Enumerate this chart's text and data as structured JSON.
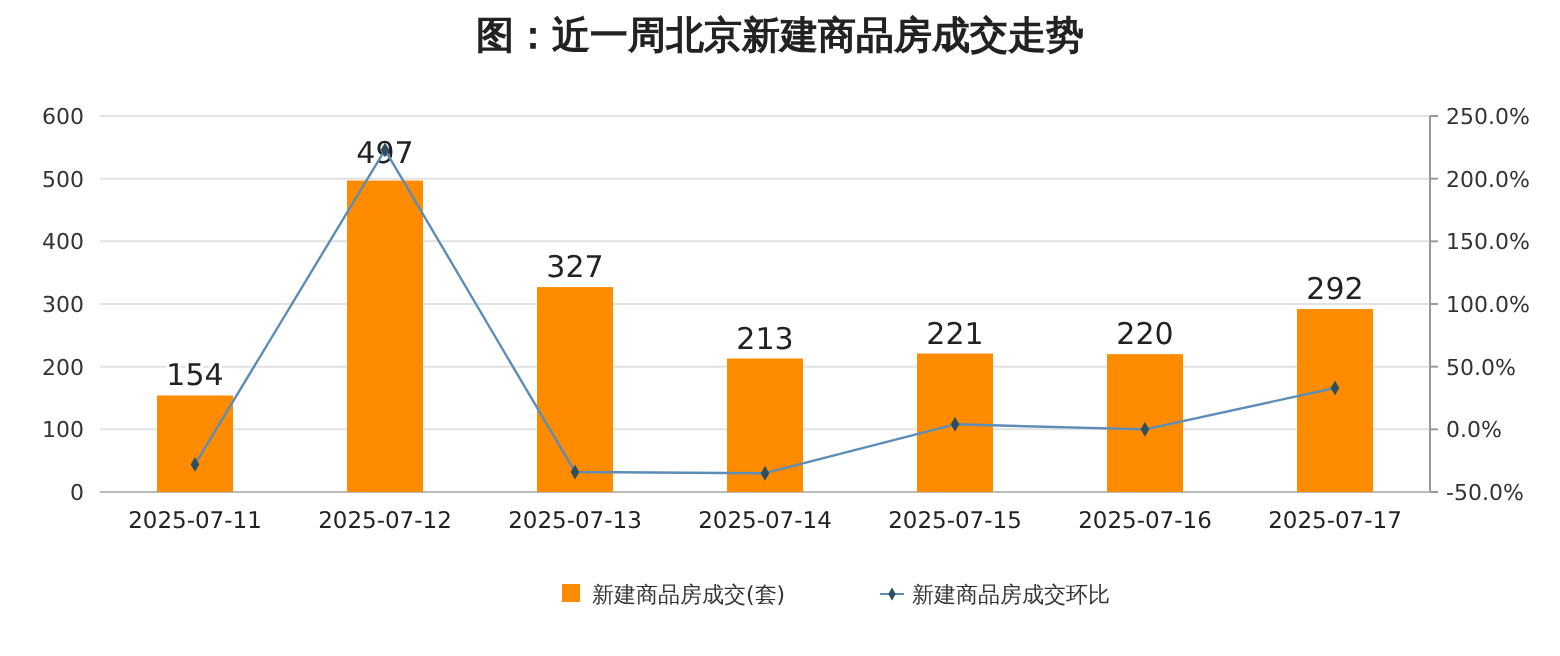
{
  "chart_data": {
    "type": "bar",
    "title": "图：近一周北京新建商品房成交走势",
    "categories": [
      "2025-07-11",
      "2025-07-12",
      "2025-07-13",
      "2025-07-14",
      "2025-07-15",
      "2025-07-16",
      "2025-07-17"
    ],
    "series": [
      {
        "name": "新建商品房成交(套)",
        "color": "#ff8c00",
        "values": [
          154,
          497,
          327,
          213,
          221,
          220,
          292
        ],
        "data_labels": true
      },
      {
        "name": "新建商品房成交环比",
        "type": "line",
        "axis": "y2",
        "color": "#5b8db8",
        "marker": "diamond",
        "values": [
          -28,
          223,
          -34,
          -35,
          4,
          0,
          33
        ]
      }
    ],
    "ylim": [
      0,
      600
    ],
    "yticks": [
      0,
      100,
      200,
      300,
      400,
      500,
      600
    ],
    "y2lim": [
      -50,
      250
    ],
    "y2ticks": [
      {
        "value": -50,
        "label": "-50.0%"
      },
      {
        "value": 0,
        "label": "0.0%"
      },
      {
        "value": 50,
        "label": "50.0%"
      },
      {
        "value": 100,
        "label": "100.0%"
      },
      {
        "value": 150,
        "label": "150.0%"
      },
      {
        "value": 200,
        "label": "200.0%"
      },
      {
        "value": 250,
        "label": "250.0%"
      }
    ],
    "grid": "y",
    "legend": "bottom"
  }
}
